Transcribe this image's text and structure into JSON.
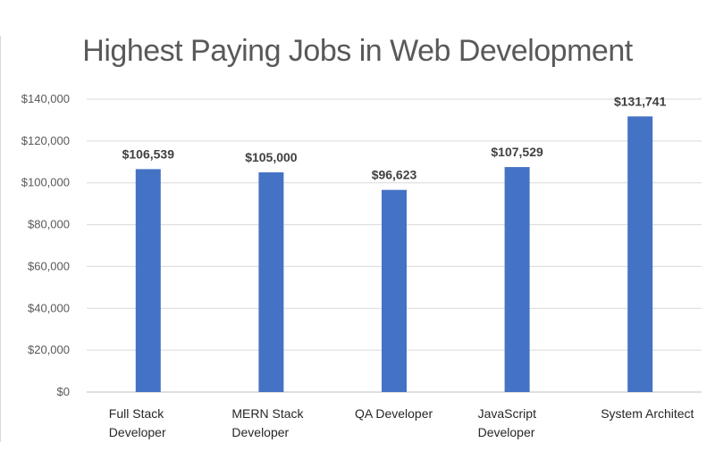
{
  "chart_data": {
    "type": "bar",
    "title": "Highest Paying Jobs in Web Development",
    "xlabel": "",
    "ylabel": "",
    "categories": [
      [
        "Full Stack",
        "Developer"
      ],
      [
        "MERN Stack",
        "Developer"
      ],
      [
        "QA Developer"
      ],
      [
        "JavaScript",
        "Developer"
      ],
      [
        "System Architect"
      ]
    ],
    "values": [
      106539,
      105000,
      96623,
      107529,
      131741
    ],
    "data_labels": [
      "$106,539",
      "$105,000",
      "$96,623",
      "$107,529",
      "$131,741"
    ],
    "ylim": [
      0,
      140000
    ],
    "y_ticks": [
      0,
      20000,
      40000,
      60000,
      80000,
      100000,
      120000,
      140000
    ],
    "y_tick_labels": [
      "$0",
      "$20,000",
      "$40,000",
      "$60,000",
      "$80,000",
      "$100,000",
      "$120,000",
      "$140,000"
    ],
    "grid": true,
    "legend": "none",
    "colors": {
      "bar": "#4472C4",
      "grid": "#d9d9d9",
      "axis": "#bfbfbf"
    }
  }
}
